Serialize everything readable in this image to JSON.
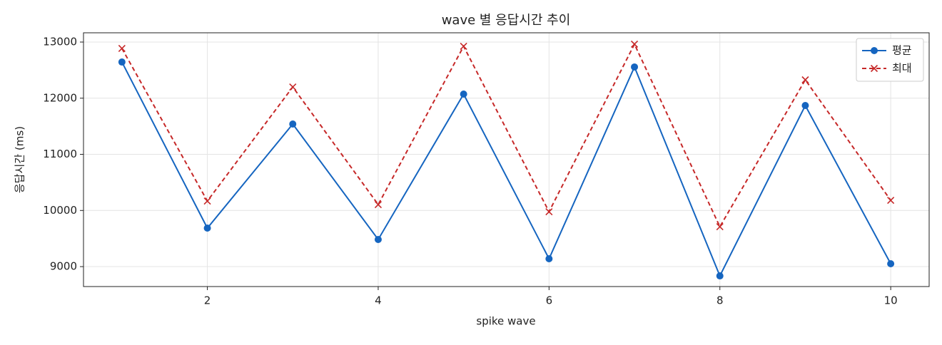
{
  "chart_data": {
    "type": "line",
    "title": "wave 별 응답시간 추이",
    "x_label": "spike wave",
    "y_label": "응답시간 (ms)",
    "x": [
      1,
      2,
      3,
      4,
      5,
      6,
      7,
      8,
      9,
      10
    ],
    "series": [
      {
        "name": "평균",
        "color": "#1565c0",
        "marker": "circle",
        "dash": false,
        "values": [
          12644,
          9686,
          11540,
          9483,
          12073,
          9140,
          12556,
          8835,
          11870,
          9051
        ]
      },
      {
        "name": "최대",
        "color": "#c62828",
        "marker": "x",
        "dash": true,
        "values": [
          12886,
          10168,
          12200,
          10105,
          12924,
          9978,
          12962,
          9711,
          12327,
          10181
        ]
      }
    ],
    "xlim": [
      0.55,
      10.45
    ],
    "ylim": [
      8645,
      13165
    ],
    "xticks": [
      2,
      4,
      6,
      8,
      10
    ],
    "yticks": [
      9000,
      10000,
      11000,
      12000,
      13000
    ],
    "grid": true,
    "legend": "upper-right"
  }
}
